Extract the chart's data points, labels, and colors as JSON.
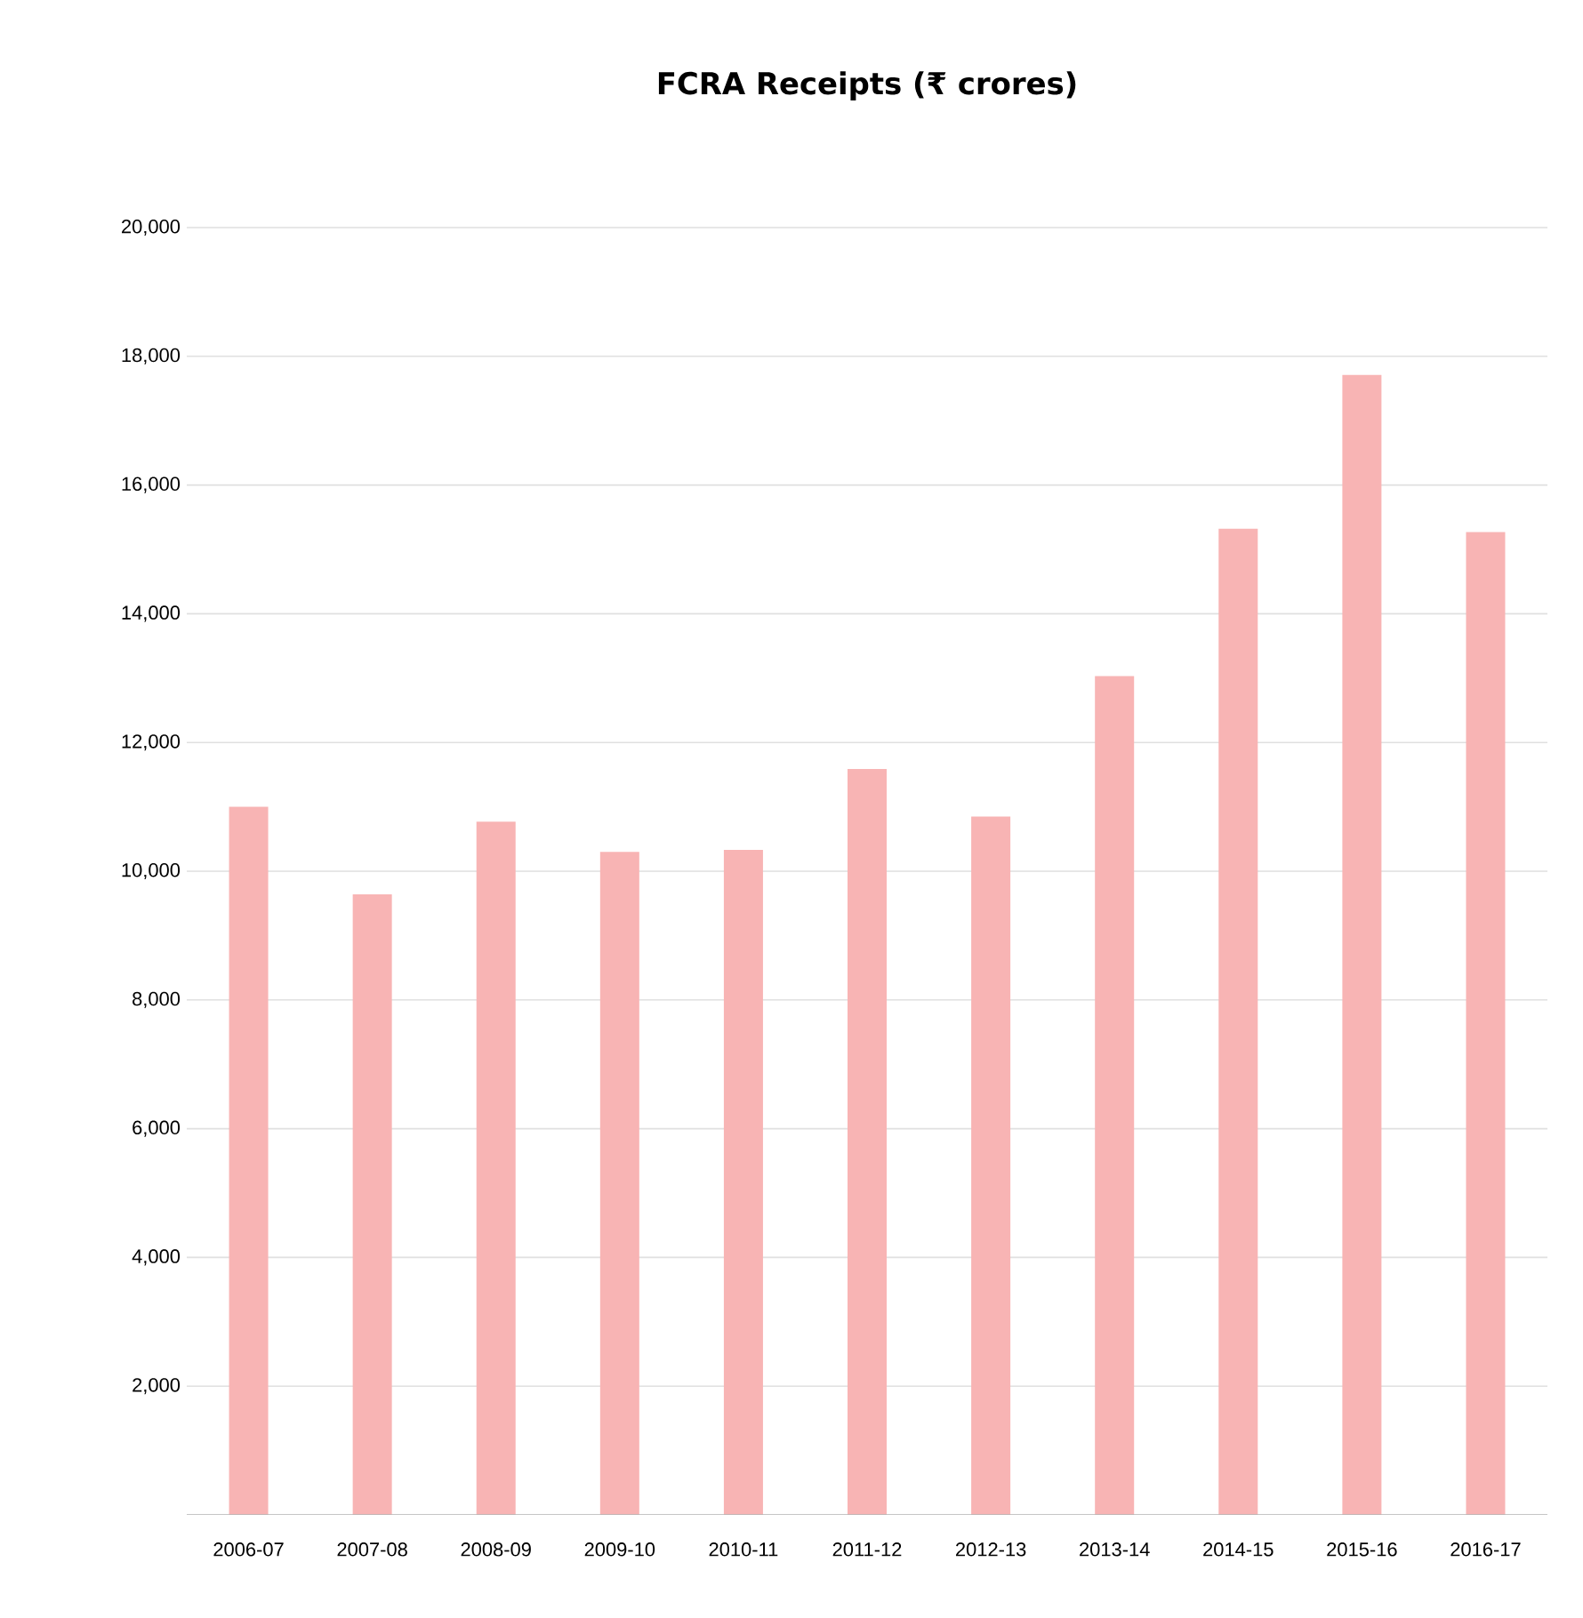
{
  "chart_data": {
    "type": "bar",
    "title": "FCRA Receipts (₹ crores)",
    "categories": [
      "2006-07",
      "2007-08",
      "2008-09",
      "2009-10",
      "2010-11",
      "2011-12",
      "2012-13",
      "2013-14",
      "2014-15",
      "2015-16",
      "2016-17"
    ],
    "values": [
      11000,
      9640,
      10770,
      10300,
      10330,
      11590,
      10850,
      13030,
      15320,
      17710,
      15270
    ],
    "color": "#f8b4b4",
    "ylim": [
      0,
      20000
    ],
    "yticks": [
      {
        "value": 2000,
        "label": "2,000"
      },
      {
        "value": 4000,
        "label": "4,000"
      },
      {
        "value": 6000,
        "label": "6,000"
      },
      {
        "value": 8000,
        "label": "8,000"
      },
      {
        "value": 10000,
        "label": "10,000"
      },
      {
        "value": 12000,
        "label": "12,000"
      },
      {
        "value": 14000,
        "label": "14,000"
      },
      {
        "value": 16000,
        "label": "16,000"
      },
      {
        "value": 18000,
        "label": "18,000"
      },
      {
        "value": 20000,
        "label": "20,000"
      }
    ],
    "grid": "y"
  }
}
